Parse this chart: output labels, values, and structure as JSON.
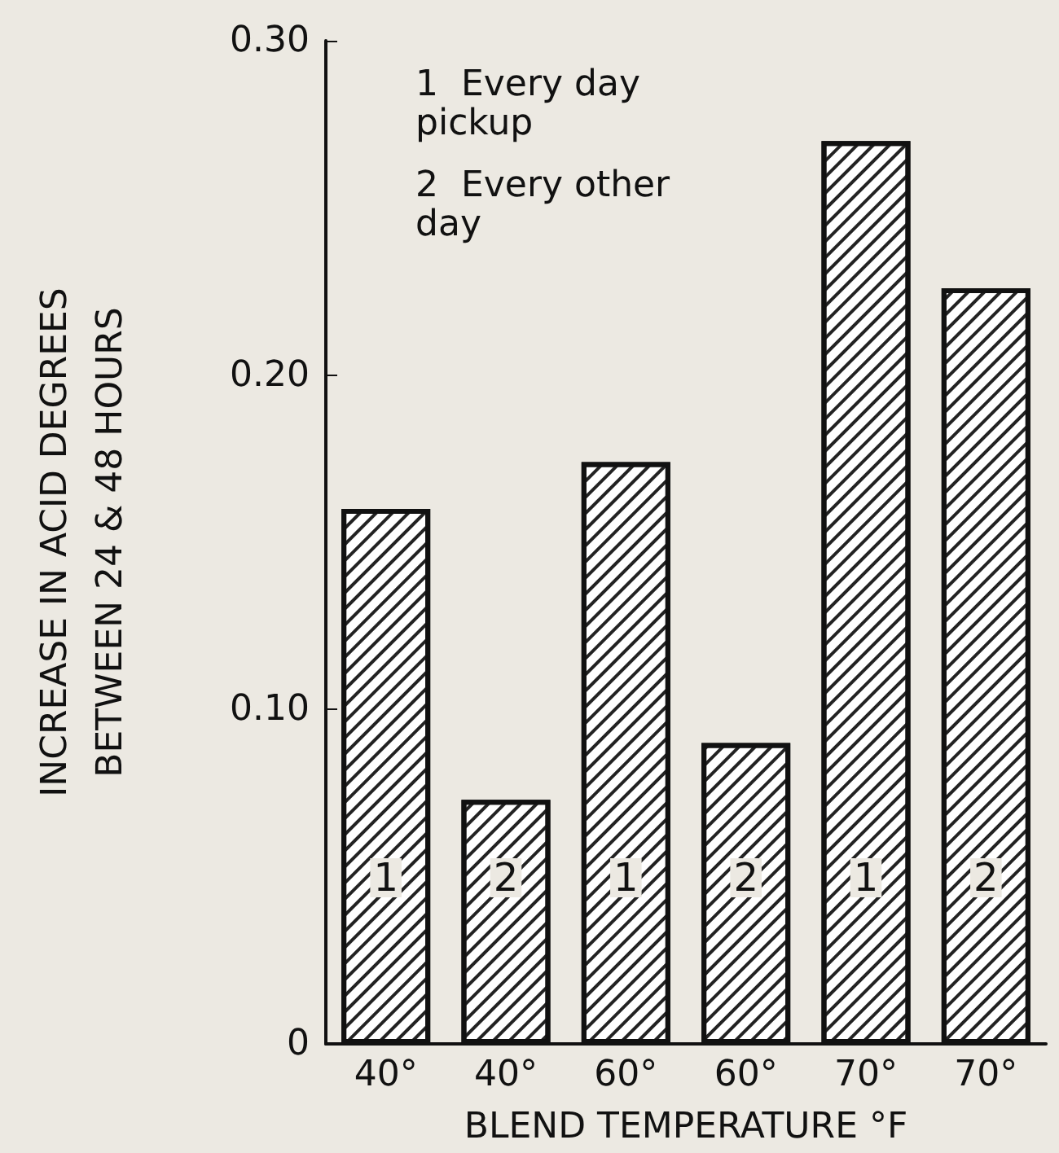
{
  "chart_data": {
    "type": "bar",
    "xlabel": "BLEND TEMPERATURE °F",
    "ylabel": "INCREASE IN ACID DEGREES\nBETWEEN 24 & 48 HOURS",
    "categories": [
      "40°",
      "40°",
      "60°",
      "60°",
      "70°",
      "70°"
    ],
    "series": [
      {
        "name": "1",
        "color": "#ffffff",
        "values": [
          0.16,
          null,
          0.174,
          null,
          0.27,
          null
        ]
      },
      {
        "name": "2",
        "color": "#ffffff",
        "values": [
          null,
          0.073,
          null,
          0.09,
          null,
          0.226
        ]
      }
    ],
    "ylim": [
      0,
      0.3
    ],
    "yticks": [
      {
        "value": 0,
        "label": "0"
      },
      {
        "value": 0.1,
        "label": "0.10"
      },
      {
        "value": 0.2,
        "label": "0.20"
      },
      {
        "value": 0.3,
        "label": "0.30"
      }
    ],
    "annotations": [
      "1  Every day\npickup",
      "2  Every other\nday"
    ],
    "grid": false,
    "legend": false
  }
}
